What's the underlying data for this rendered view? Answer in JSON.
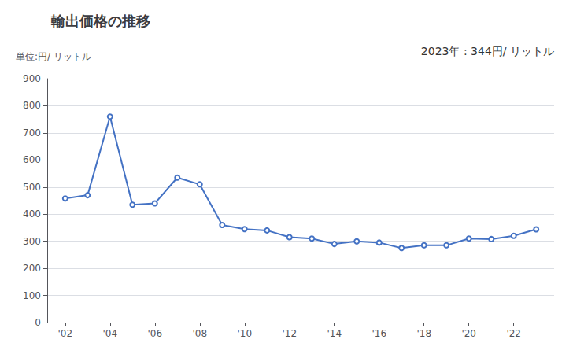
{
  "chart_data": {
    "type": "line",
    "title": "輸出価格の推移",
    "ylabel": "単位:円/ リットル",
    "annotation": "2023年 : 344円/ リットル",
    "x": [
      2002,
      2003,
      2004,
      2005,
      2006,
      2007,
      2008,
      2009,
      2010,
      2011,
      2012,
      2013,
      2014,
      2015,
      2016,
      2017,
      2018,
      2019,
      2020,
      2021,
      2022,
      2023
    ],
    "values": [
      458,
      470,
      760,
      435,
      440,
      535,
      510,
      360,
      345,
      340,
      315,
      310,
      290,
      300,
      295,
      275,
      285,
      285,
      310,
      308,
      320,
      344
    ],
    "color": "#4472C4",
    "xlim": [
      2001.2,
      2023.8
    ],
    "xticks": [
      {
        "value": 2002,
        "label": "'02"
      },
      {
        "value": 2004,
        "label": "'04"
      },
      {
        "value": 2006,
        "label": "'06"
      },
      {
        "value": 2008,
        "label": "'08"
      },
      {
        "value": 2010,
        "label": "'10"
      },
      {
        "value": 2012,
        "label": "'12"
      },
      {
        "value": 2014,
        "label": "'14"
      },
      {
        "value": 2016,
        "label": "'16"
      },
      {
        "value": 2018,
        "label": "'18"
      },
      {
        "value": 2020,
        "label": "'20"
      },
      {
        "value": 2022,
        "label": "'22"
      }
    ],
    "ylim": [
      0,
      900
    ],
    "yticks": [
      0,
      100,
      200,
      300,
      400,
      500,
      600,
      700,
      800,
      900
    ],
    "grid": true
  }
}
